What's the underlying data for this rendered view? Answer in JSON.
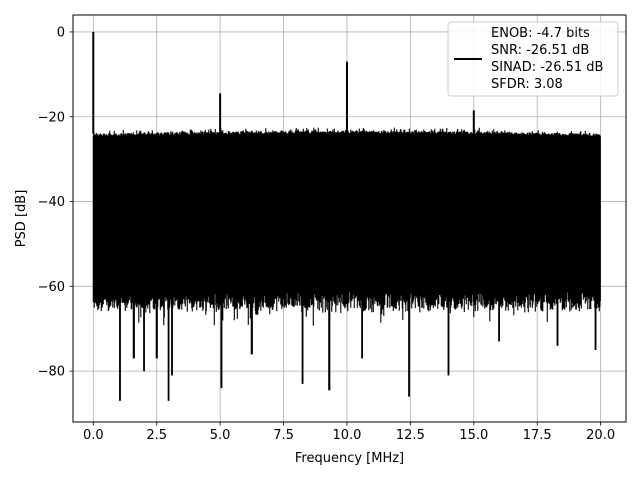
{
  "chart_data": {
    "type": "line",
    "title": "",
    "xlabel": "Frequency [MHz]",
    "ylabel": "PSD [dB]",
    "xlim": [
      -0.8,
      21.0
    ],
    "ylim": [
      -92,
      4
    ],
    "xticks": [
      0.0,
      2.5,
      5.0,
      7.5,
      10.0,
      12.5,
      15.0,
      17.5,
      20.0
    ],
    "xtick_labels": [
      "0.0",
      "2.5",
      "5.0",
      "7.5",
      "10.0",
      "12.5",
      "15.0",
      "17.5",
      "20.0"
    ],
    "yticks": [
      0,
      -20,
      -40,
      -60,
      -80
    ],
    "ytick_labels": [
      "0",
      "−20",
      "−40",
      "−60",
      "−80"
    ],
    "grid": true,
    "legend_position": "upper right",
    "series": [
      {
        "color": "#000000",
        "description": "Dense noise floor between about -24 dB and -65 dB spanning 0 to 20 MHz, with spikes",
        "floor_band": {
          "x_start": 0.0,
          "x_end": 20.0,
          "upper_dB": -24,
          "lower_dB": -65
        },
        "peaks": [
          {
            "x": 0.0,
            "y": 0
          },
          {
            "x": 5.0,
            "y": -14.5
          },
          {
            "x": 10.0,
            "y": -7
          },
          {
            "x": 15.0,
            "y": -18.5
          }
        ],
        "dips": [
          {
            "x": 1.05,
            "y": -87
          },
          {
            "x": 1.6,
            "y": -77
          },
          {
            "x": 2.0,
            "y": -80
          },
          {
            "x": 2.5,
            "y": -77
          },
          {
            "x": 2.97,
            "y": -87
          },
          {
            "x": 3.1,
            "y": -81
          },
          {
            "x": 5.05,
            "y": -84
          },
          {
            "x": 6.25,
            "y": -76
          },
          {
            "x": 8.25,
            "y": -83
          },
          {
            "x": 9.3,
            "y": -84.5
          },
          {
            "x": 10.6,
            "y": -77
          },
          {
            "x": 12.45,
            "y": -86
          },
          {
            "x": 14.0,
            "y": -81
          },
          {
            "x": 16.0,
            "y": -73
          },
          {
            "x": 18.3,
            "y": -74
          },
          {
            "x": 19.8,
            "y": -75
          }
        ]
      }
    ],
    "legend_lines": [
      "ENOB: -4.7 bits",
      "SNR: -26.51 dB",
      "SINAD: -26.51 dB",
      "SFDR: 3.08"
    ]
  }
}
